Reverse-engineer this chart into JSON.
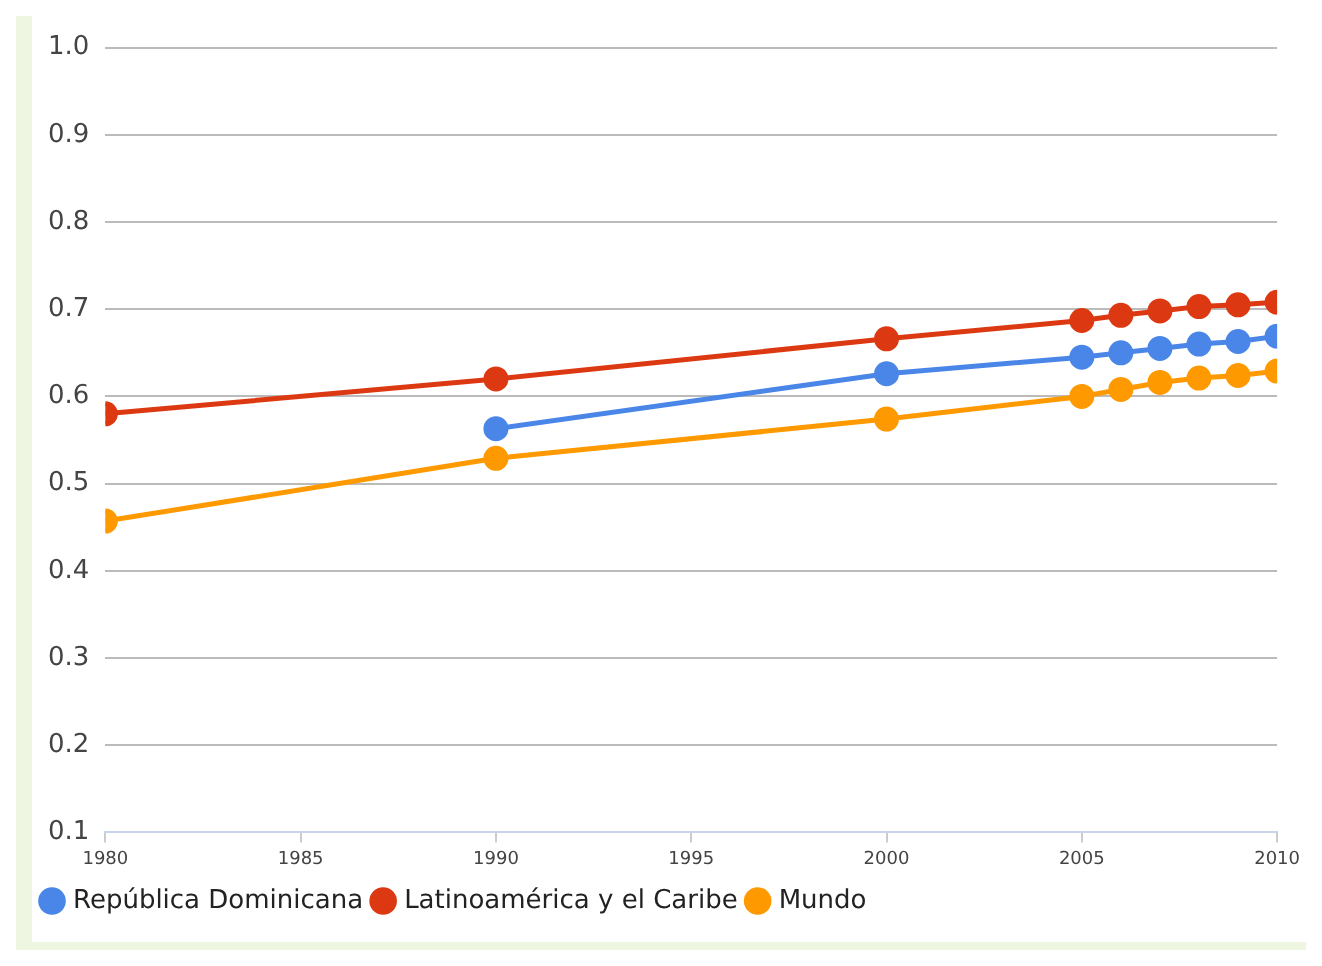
{
  "chart_data": {
    "type": "line",
    "x": [
      1980,
      1990,
      2000,
      2005,
      2006,
      2007,
      2008,
      2009,
      2010
    ],
    "series": [
      {
        "name": "República Dominicana",
        "color": "#4a86e8",
        "x": [
          1990,
          2000,
          2005,
          2006,
          2007,
          2008,
          2009,
          2010
        ],
        "values": [
          0.563,
          0.626,
          0.645,
          0.65,
          0.655,
          0.66,
          0.663,
          0.669
        ]
      },
      {
        "name": "Latinoamérica y el Caribe",
        "color": "#dc3912",
        "values": [
          0.58,
          0.62,
          0.666,
          0.687,
          0.693,
          0.698,
          0.703,
          0.705,
          0.708
        ]
      },
      {
        "name": "Mundo",
        "color": "#ff9900",
        "values": [
          0.457,
          0.529,
          0.574,
          0.6,
          0.608,
          0.616,
          0.621,
          0.624,
          0.629
        ]
      }
    ],
    "xlim": [
      1980,
      2010
    ],
    "xticks": [
      1980,
      1985,
      1990,
      1995,
      2000,
      2005,
      2010
    ],
    "ylim": [
      0.1,
      1.0
    ],
    "yticks": [
      0.1,
      0.2,
      0.3,
      0.4,
      0.5,
      0.6,
      0.7,
      0.8,
      0.9,
      {
        "value": 1.0,
        "label": "1.0"
      }
    ],
    "grid": "y",
    "legend": "bottom left",
    "marker": "circle",
    "line_style": "solid"
  }
}
